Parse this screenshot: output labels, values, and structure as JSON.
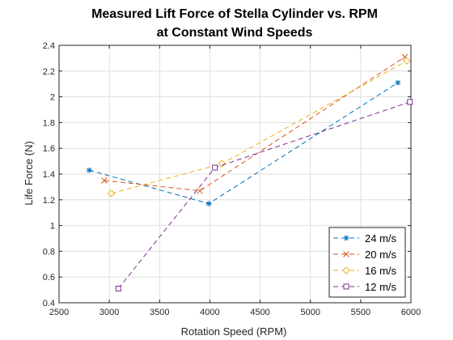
{
  "chart_data": {
    "type": "line",
    "title_lines": [
      "Measured Lift Force of Stella Cylinder vs. RPM",
      "at Constant Wind Speeds"
    ],
    "xlabel": "Rotation Speed (RPM)",
    "ylabel": "Life Force (N)",
    "xlim": [
      2500,
      6000
    ],
    "ylim": [
      0.4,
      2.4
    ],
    "xticks": [
      2500,
      3000,
      3500,
      4000,
      4500,
      5000,
      5500,
      6000
    ],
    "yticks": [
      0.4,
      0.6,
      0.8,
      1,
      1.2,
      1.4,
      1.6,
      1.8,
      2,
      2.2,
      2.4
    ],
    "grid": true,
    "legend_position": "bottom-right",
    "series": [
      {
        "name": "24 m/s",
        "color": "#0072bd",
        "marker": "asterisk",
        "x": [
          2800,
          3990,
          5870
        ],
        "y": [
          1.43,
          1.17,
          2.11
        ]
      },
      {
        "name": "20 m/s",
        "color": "#d95319",
        "marker": "x",
        "x": [
          2950,
          3900,
          5940
        ],
        "y": [
          1.35,
          1.27,
          2.31
        ]
      },
      {
        "name": "16 m/s",
        "color": "#edb120",
        "marker": "diamond",
        "x": [
          3020,
          4120,
          5960
        ],
        "y": [
          1.25,
          1.48,
          2.28
        ]
      },
      {
        "name": "12 m/s",
        "color": "#7e2f8e",
        "marker": "square",
        "x": [
          3090,
          4050,
          5990
        ],
        "y": [
          0.51,
          1.45,
          1.96
        ]
      }
    ]
  }
}
